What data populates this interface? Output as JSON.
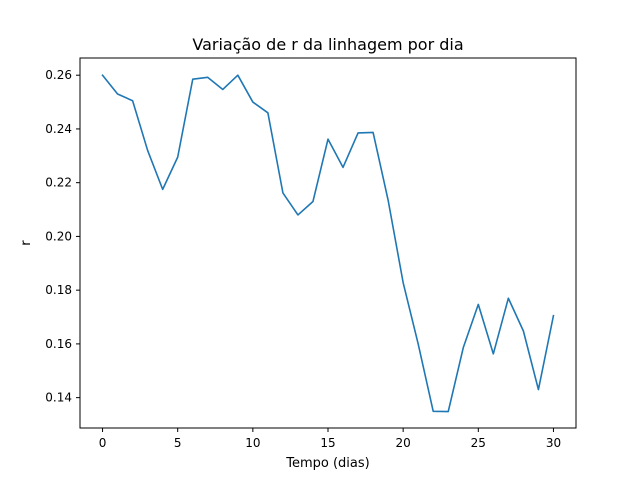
{
  "chart_data": {
    "type": "line",
    "title": "Variação de r da linhagem por dia",
    "xlabel": "Tempo (dias)",
    "ylabel": "r",
    "xlim": [
      -1.5,
      31.5
    ],
    "ylim": [
      0.1287,
      0.2664
    ],
    "xticks": [
      0,
      5,
      10,
      15,
      20,
      25,
      30
    ],
    "xtick_labels": [
      "0",
      "5",
      "10",
      "15",
      "20",
      "25",
      "30"
    ],
    "yticks": [
      0.14,
      0.16,
      0.18,
      0.2,
      0.22,
      0.24,
      0.26
    ],
    "ytick_labels": [
      "0.14",
      "0.16",
      "0.18",
      "0.20",
      "0.22",
      "0.24",
      "0.26"
    ],
    "grid": false,
    "series": [
      {
        "color": "#1f77b4",
        "x": [
          0,
          1,
          2,
          3,
          4,
          5,
          6,
          7,
          8,
          9,
          10,
          11,
          12,
          13,
          14,
          15,
          16,
          17,
          18,
          19,
          20,
          21,
          22,
          23,
          24,
          25,
          26,
          27,
          28,
          29,
          30
        ],
        "y": [
          0.26,
          0.253,
          0.2505,
          0.232,
          0.2175,
          0.2295,
          0.2585,
          0.2592,
          0.2547,
          0.26,
          0.25,
          0.246,
          0.2162,
          0.208,
          0.213,
          0.2362,
          0.2257,
          0.2385,
          0.2387,
          0.2135,
          0.1828,
          0.16,
          0.1349,
          0.1348,
          0.1586,
          0.1747,
          0.1563,
          0.177,
          0.1648,
          0.143,
          0.1705
        ]
      }
    ]
  }
}
